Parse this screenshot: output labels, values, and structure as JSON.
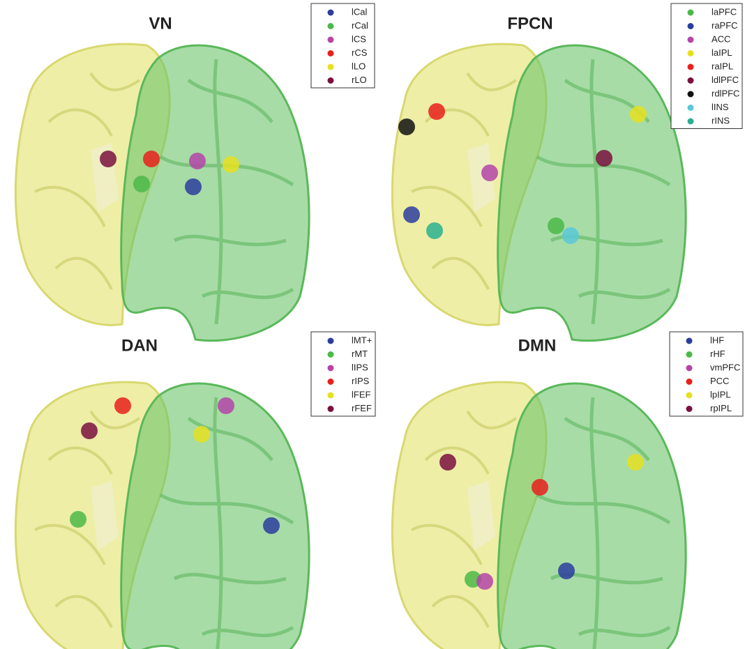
{
  "panels": [
    {
      "title": "VN",
      "legend": [
        {
          "label": "lCal",
          "color": "#2b3d9e"
        },
        {
          "label": "rCal",
          "color": "#4cb848"
        },
        {
          "label": "lCS",
          "color": "#b444a8"
        },
        {
          "label": "rCS",
          "color": "#e8201c"
        },
        {
          "label": "lLO",
          "color": "#e6e020"
        },
        {
          "label": "rLO",
          "color": "#7a1040"
        }
      ]
    },
    {
      "title": "FPCN",
      "legend": [
        {
          "label": "laPFC",
          "color": "#4cb848"
        },
        {
          "label": "raPFC",
          "color": "#2b3d9e"
        },
        {
          "label": "ACC",
          "color": "#b444a8"
        },
        {
          "label": "laIPL",
          "color": "#e6e020"
        },
        {
          "label": "raIPL",
          "color": "#e8201c"
        },
        {
          "label": "ldlPFC",
          "color": "#7a1040"
        },
        {
          "label": "rdlPFC",
          "color": "#111111"
        },
        {
          "label": "lINS",
          "color": "#5ac8d8"
        },
        {
          "label": "rINS",
          "color": "#2ab090"
        }
      ]
    },
    {
      "title": "DAN",
      "legend": [
        {
          "label": "lMT+",
          "color": "#2b3d9e"
        },
        {
          "label": "rMT",
          "color": "#4cb848"
        },
        {
          "label": "lIPS",
          "color": "#b444a8"
        },
        {
          "label": "rIPS",
          "color": "#e8201c"
        },
        {
          "label": "lFEF",
          "color": "#e6e020"
        },
        {
          "label": "rFEF",
          "color": "#7a1040"
        }
      ]
    },
    {
      "title": "DMN",
      "legend": [
        {
          "label": "lHF",
          "color": "#2b3d9e"
        },
        {
          "label": "rHF",
          "color": "#4cb848"
        },
        {
          "label": "vmPFC",
          "color": "#b444a8"
        },
        {
          "label": "PCC",
          "color": "#e8201c"
        },
        {
          "label": "lpIPL",
          "color": "#e6e020"
        },
        {
          "label": "rpIPL",
          "color": "#7a1040"
        }
      ]
    }
  ]
}
